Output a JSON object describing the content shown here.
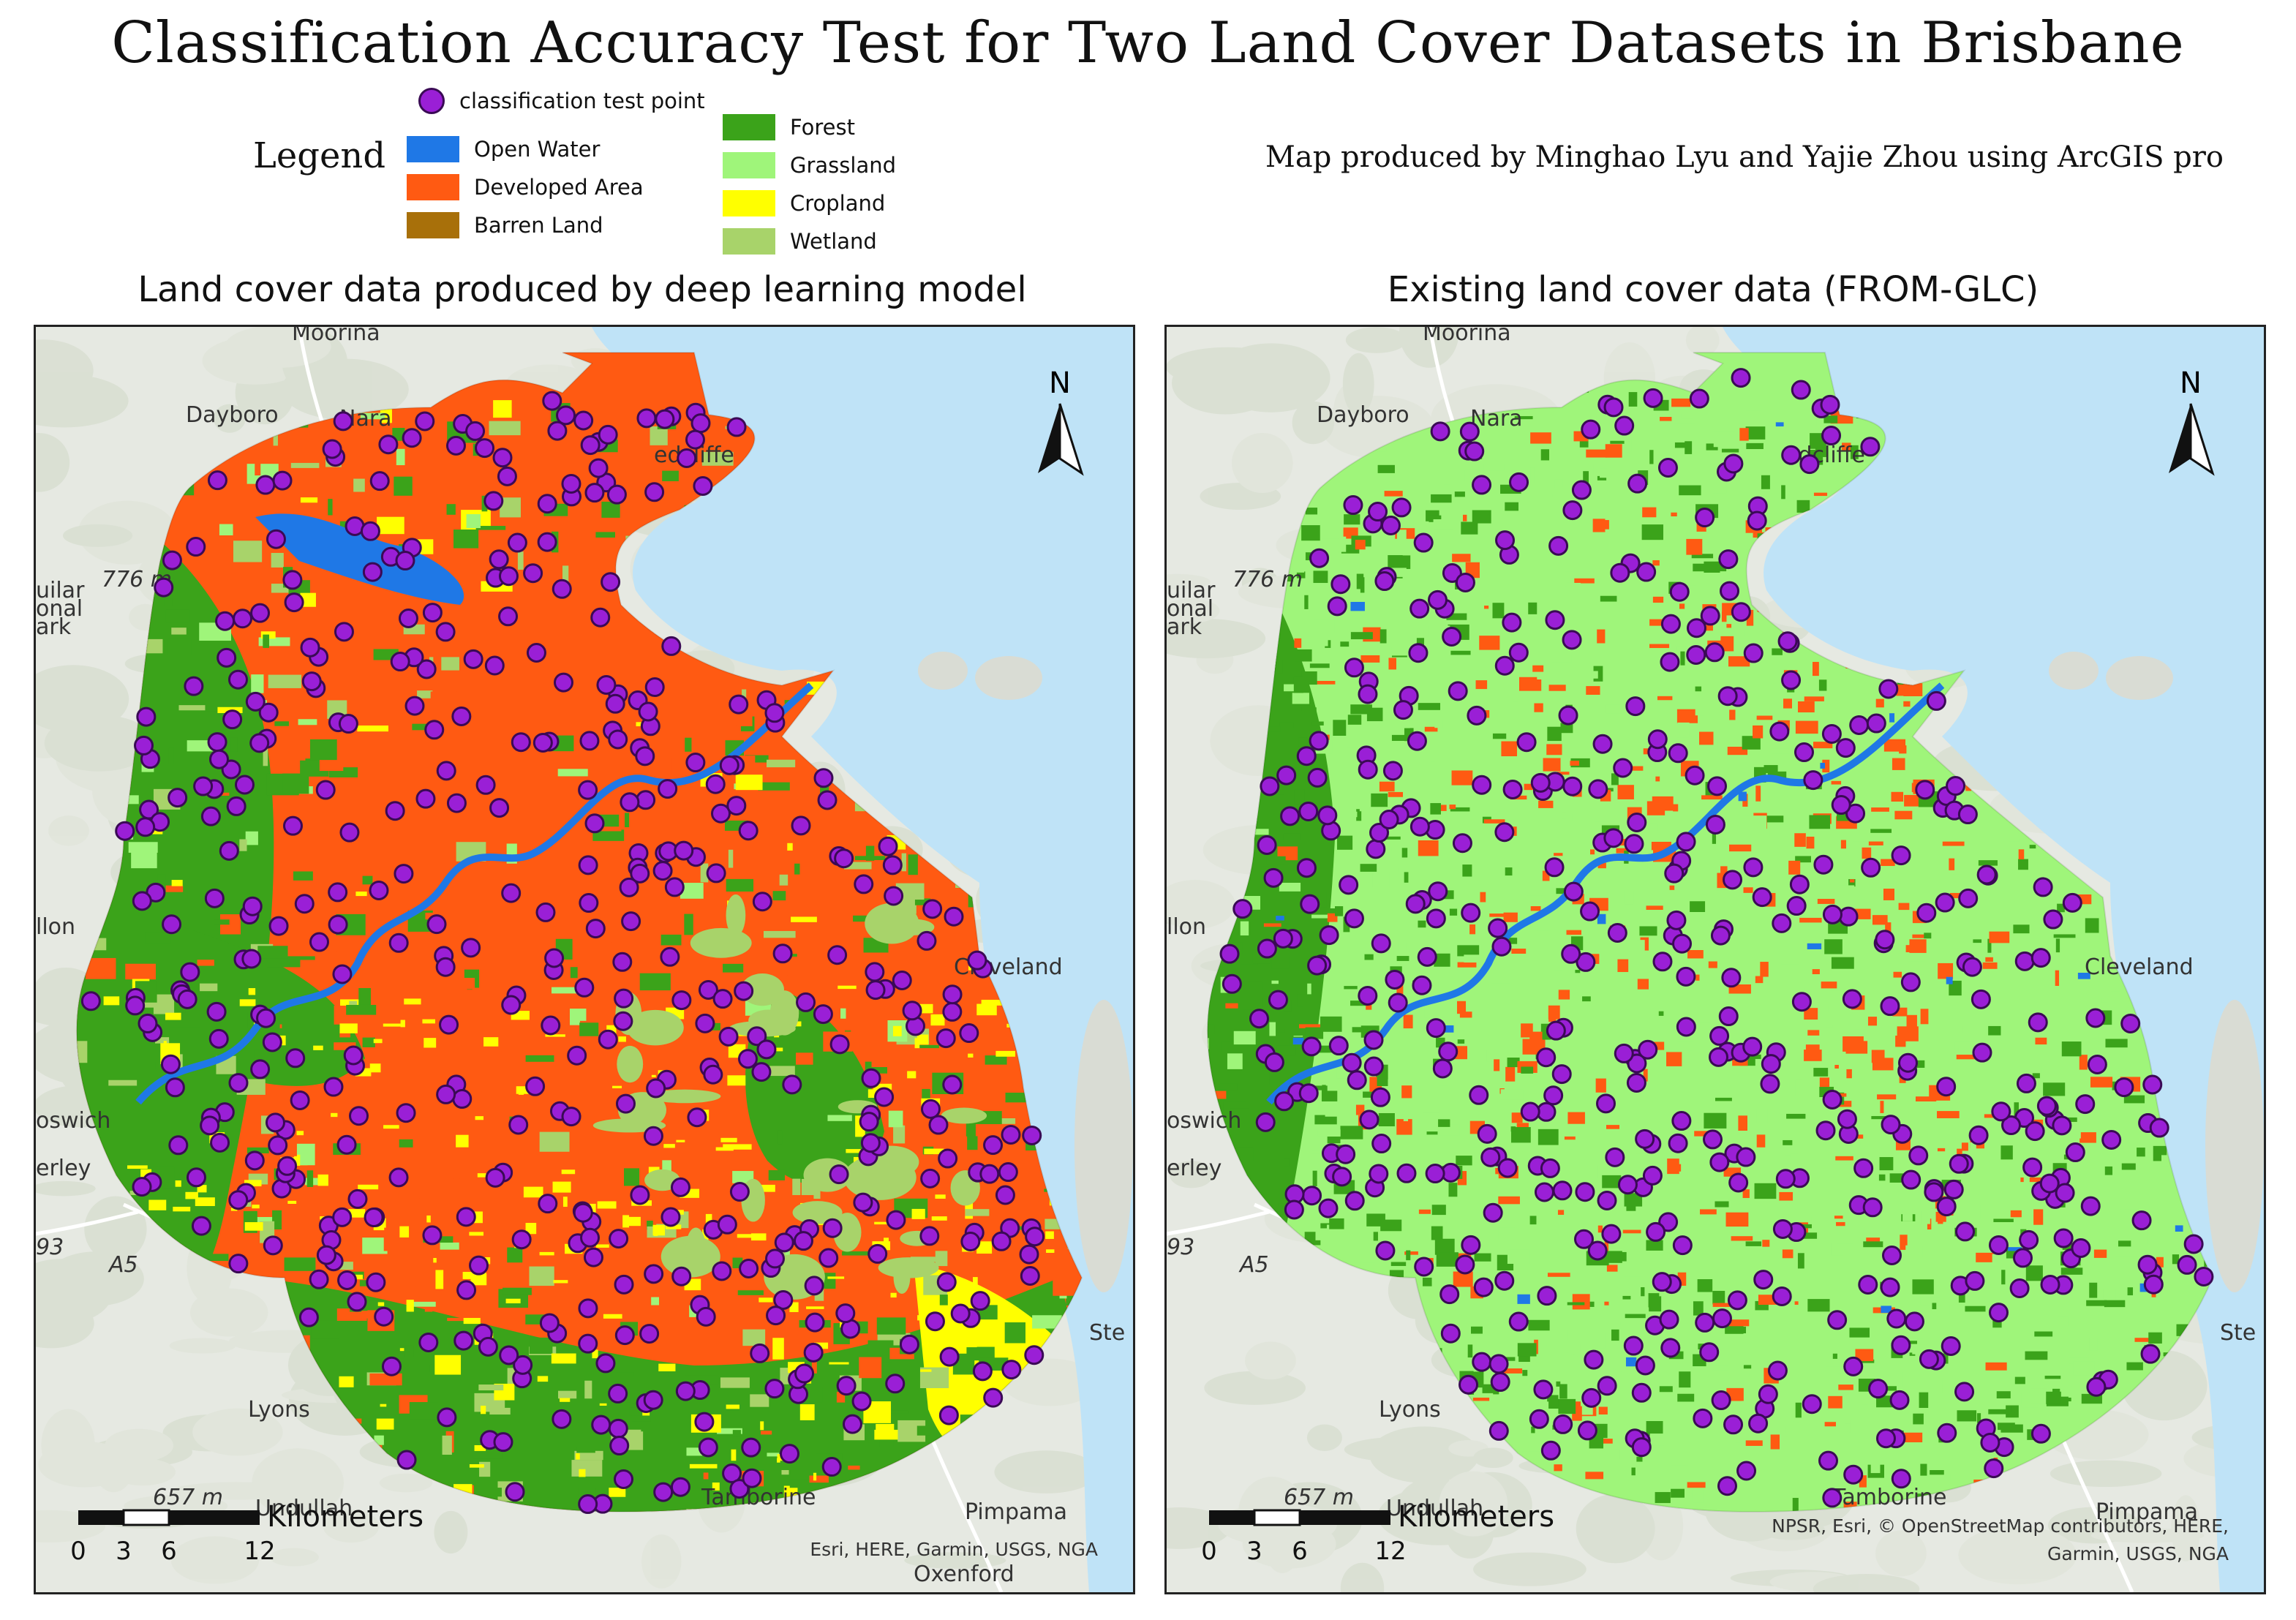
{
  "title": "Classification Accuracy Test for Two Land Cover Datasets in Brisbane",
  "credit": "Map produced by Minghao Lyu and Yajie Zhou using ArcGIS pro",
  "legend": {
    "label": "Legend",
    "point_item": {
      "label": "classification test point",
      "color": "#9a1fd6"
    },
    "col1": [
      {
        "label": "Open Water",
        "color": "#1f78e6"
      },
      {
        "label": "Developed Area",
        "color": "#ff5a12"
      },
      {
        "label": "Barren Land",
        "color": "#a8700a"
      }
    ],
    "col2": [
      {
        "label": "Forest",
        "color": "#3ba31a"
      },
      {
        "label": "Grassland",
        "color": "#9ff57a"
      },
      {
        "label": "Cropland",
        "color": "#ffff00"
      },
      {
        "label": "Wetland",
        "color": "#a8d36a"
      }
    ]
  },
  "panels": [
    {
      "title": "Land cover data produced by deep learning model",
      "north": "N",
      "scale_label": "Kilometers",
      "scale_ticks": [
        "0",
        "3",
        "6",
        "12"
      ],
      "attribution": "Esri, HERE, Garmin, USGS, NGA",
      "place_labels": [
        "Moorina",
        "Dayboro",
        "Nara",
        "edcliffe",
        "776 m",
        "uilar",
        "onal",
        "ark",
        "llon",
        "Cleveland",
        "oswich",
        "erley",
        "93",
        "A5",
        "Ste",
        "Lyons",
        "657 m",
        "Undullah",
        "Tamborine",
        "Pimpama",
        "Oxenford"
      ]
    },
    {
      "title": "Existing land cover data (FROM-GLC)",
      "north": "N",
      "scale_label": "Kilometers",
      "scale_ticks": [
        "0",
        "3",
        "6",
        "12"
      ],
      "attribution_line1": "NPSR, Esri, © OpenStreetMap contributors, HERE,",
      "attribution_line2": "Garmin, USGS, NGA",
      "place_labels": [
        "Moorina",
        "Dayboro",
        "Nara",
        "edcliffe",
        "776 m",
        "uilar",
        "onal",
        "ark",
        "llon",
        "Cleveland",
        "oswich",
        "erley",
        "93",
        "A5",
        "Ste",
        "Lyons",
        "657 m",
        "Undullah",
        "Tamborine",
        "Pimpama"
      ]
    }
  ],
  "colors": {
    "sea": "#bfe3f7",
    "basemap": "#e6e9e2",
    "point_fill": "#9a1fd6",
    "point_stroke": "#3a0a55"
  }
}
